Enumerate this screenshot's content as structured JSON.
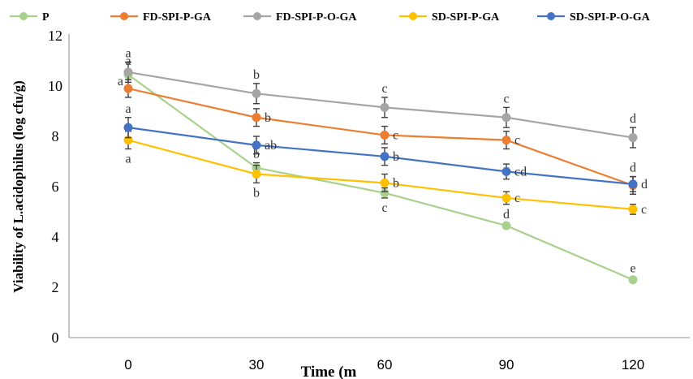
{
  "chart_data": {
    "type": "line",
    "title": "",
    "xlabel": "Time (m",
    "ylabel": "Viability of L.acidophilus (log cfu/g)",
    "x": [
      0,
      30,
      60,
      90,
      120
    ],
    "x_tick_labels": [
      "0",
      "30",
      "60",
      "90",
      "120"
    ],
    "ylim": [
      0,
      12
    ],
    "y_ticks": [
      0,
      2,
      4,
      6,
      8,
      10,
      12
    ],
    "grid": false,
    "legend_position": "top",
    "series": [
      {
        "name": "P",
        "color": "#a9d18e",
        "values": [
          10.45,
          6.75,
          5.75,
          4.45,
          2.3
        ],
        "errors": [
          0.2,
          0.2,
          0.2,
          0.1,
          0.1
        ],
        "labels": [
          {
            "text": "a",
            "pos": "above"
          },
          {
            "text": "b",
            "pos": "above"
          },
          {
            "text": "c",
            "pos": "below"
          },
          {
            "text": "d",
            "pos": "above"
          },
          {
            "text": "e",
            "pos": "above"
          }
        ]
      },
      {
        "name": "FD-SPI-P-GA",
        "color": "#ed7d31",
        "values": [
          9.9,
          8.75,
          8.05,
          7.85,
          6.05
        ],
        "errors": [
          0.35,
          0.35,
          0.35,
          0.35,
          0.35
        ],
        "labels": [
          {
            "text": "a",
            "pos": "left"
          },
          {
            "text": "b",
            "pos": "right"
          },
          {
            "text": "c",
            "pos": "right"
          },
          {
            "text": "c",
            "pos": "right"
          },
          {
            "text": "d",
            "pos": "above"
          }
        ]
      },
      {
        "name": "FD-SPI-P-O-GA",
        "color": "#a5a5a5",
        "values": [
          10.55,
          9.7,
          9.15,
          8.75,
          7.95
        ],
        "errors": [
          0.4,
          0.4,
          0.4,
          0.4,
          0.4
        ],
        "labels": [
          {
            "text": "a",
            "pos": "above"
          },
          {
            "text": "b",
            "pos": "above"
          },
          {
            "text": "c",
            "pos": "above"
          },
          {
            "text": "c",
            "pos": "above"
          },
          {
            "text": "d",
            "pos": "above"
          }
        ]
      },
      {
        "name": "SD-SPI-P-GA",
        "color": "#ffc000",
        "values": [
          7.85,
          6.5,
          6.15,
          5.55,
          5.1
        ],
        "errors": [
          0.35,
          0.35,
          0.35,
          0.25,
          0.2
        ],
        "labels": [
          {
            "text": "a",
            "pos": "below"
          },
          {
            "text": "b",
            "pos": "below"
          },
          {
            "text": "b",
            "pos": "right"
          },
          {
            "text": "c",
            "pos": "right"
          },
          {
            "text": "c",
            "pos": "right"
          }
        ]
      },
      {
        "name": "SD-SPI-P-O-GA",
        "color": "#4472c4",
        "values": [
          8.35,
          7.65,
          7.2,
          6.6,
          6.1
        ],
        "errors": [
          0.4,
          0.35,
          0.35,
          0.3,
          0.3
        ],
        "labels": [
          {
            "text": "a",
            "pos": "above"
          },
          {
            "text": "ab",
            "pos": "right"
          },
          {
            "text": "b",
            "pos": "right"
          },
          {
            "text": "cd",
            "pos": "right"
          },
          {
            "text": "d",
            "pos": "right"
          }
        ]
      }
    ]
  }
}
